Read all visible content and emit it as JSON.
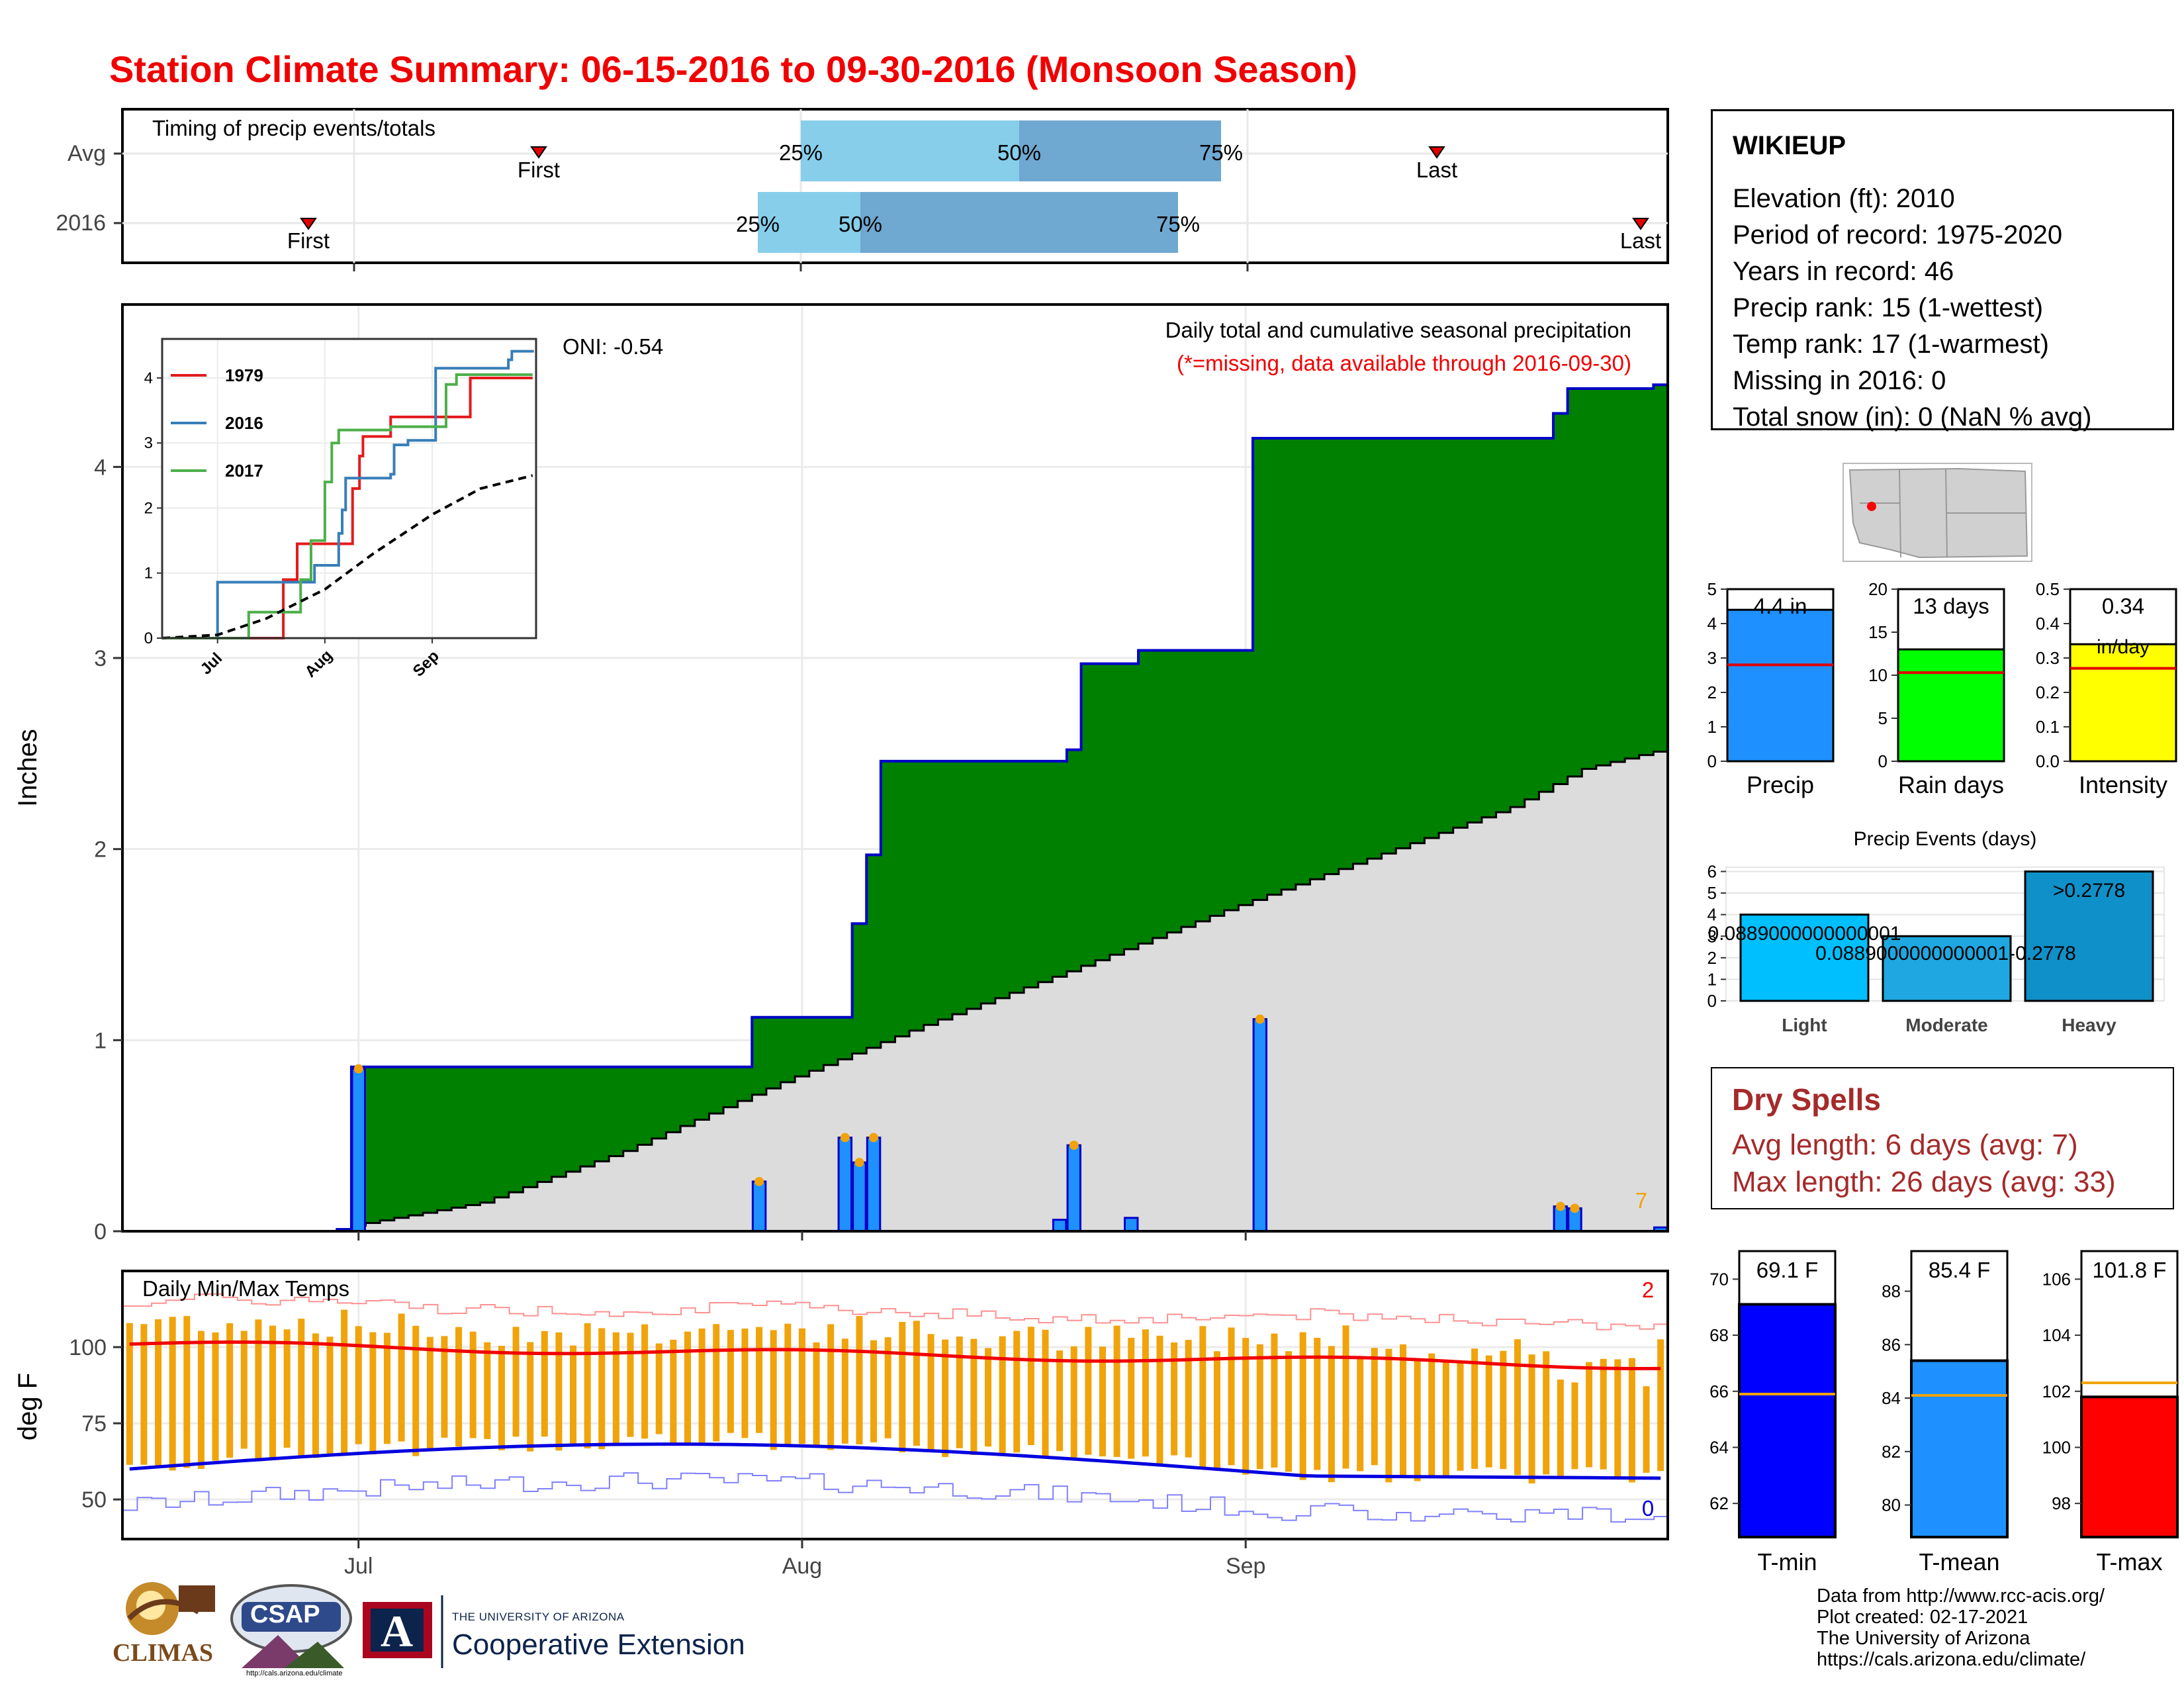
{
  "title": "Station Climate Summary: 06-15-2016 to 09-30-2016 (Monsoon Season)",
  "colors": {
    "title": "#f00000",
    "cumulative_2016": "#008000",
    "cumulative_outline": "#0000c8",
    "avg_cumulative": "#dcdcdc",
    "daily_bar": "#1e90ff",
    "temp_bar": "#f0a30a",
    "tmax_line": "#f00000",
    "tmin_line": "#0000e0",
    "dry_spell_text": "#a52a2a",
    "quartile_light": "#87ceeb",
    "quartile_dark": "#6fa8d0"
  },
  "timing_panel": {
    "label": "Timing of precip events/totals",
    "rows": [
      {
        "name": "Avg",
        "first_label": "First",
        "last_label": "Last",
        "q25": "25%",
        "q50": "50%",
        "q75": "75%"
      },
      {
        "name": "2016",
        "first_label": "First",
        "last_label": "Last",
        "q25": "25%",
        "q50": "50%",
        "q75": "75%"
      }
    ]
  },
  "precip_panel": {
    "ylabel": "Inches",
    "yticks": [
      "0",
      "1",
      "2",
      "3",
      "4"
    ],
    "annotation_title": "Daily total and cumulative seasonal precipitation",
    "annotation_sub": "(*=missing, data available through 2016-09-30)",
    "oni": "ONI: -0.54",
    "count_label": "7"
  },
  "inset": {
    "yticks": [
      "0",
      "1",
      "2",
      "3",
      "4"
    ],
    "xticks": [
      "Jul",
      "Aug",
      "Sep"
    ],
    "legend": [
      "1979",
      "2016",
      "2017"
    ]
  },
  "temp_panel": {
    "ylabel": "deg F",
    "label": "Daily Min/Max Temps",
    "yticks": [
      "50",
      "75",
      "100"
    ],
    "xticks": [
      "Jul",
      "Aug",
      "Sep"
    ],
    "count_hi": "2",
    "count_lo": "0"
  },
  "station": {
    "name": "WIKIEUP",
    "lines": [
      "Elevation (ft): 2010",
      "Period of record: 1975-2020",
      "Years in record: 46",
      "Precip rank: 15 (1-wettest)",
      "Temp rank: 17 (1-warmest)",
      "Missing in 2016: 0",
      "Total snow (in): 0 (NaN % avg)"
    ]
  },
  "summary_bars": [
    {
      "label": "Precip",
      "value_text": "4.4 in",
      "value": 4.4,
      "avg": 2.8,
      "ymax": 5,
      "ticks": [
        "0",
        "1",
        "2",
        "3",
        "4",
        "5"
      ],
      "color": "#1e90ff"
    },
    {
      "label": "Rain days",
      "value_text": "13 days",
      "value": 13,
      "avg": 10.3,
      "ymax": 20,
      "ticks": [
        "0",
        "5",
        "10",
        "15",
        "20"
      ],
      "color": "#00ff00"
    },
    {
      "label": "Intensity",
      "value_text": "0.34",
      "value_text2": "in/day",
      "value": 0.34,
      "avg": 0.27,
      "ymax": 0.5,
      "ticks": [
        "0.0",
        "0.1",
        "0.2",
        "0.3",
        "0.4",
        "0.5"
      ],
      "color": "#ffff00"
    }
  ],
  "precip_events": {
    "title": "Precip Events (days)",
    "ticks": [
      "0",
      "1",
      "2",
      "3",
      "4",
      "5",
      "6"
    ],
    "bars": [
      {
        "label": "Light",
        "value": 4,
        "threshold": "0.0889000000000001",
        "color": "#00bfff"
      },
      {
        "label": "Moderate",
        "value": 3,
        "threshold": "0.0889000000000001-0.2778",
        "color": "#1ea7e0"
      },
      {
        "label": "Heavy",
        "value": 6,
        "threshold": ">0.2778",
        "color": "#1090c8"
      }
    ]
  },
  "dry_spells": {
    "title": "Dry Spells",
    "avg": "Avg length: 6 days (avg: 7)",
    "max": "Max length: 26 days (avg: 33)"
  },
  "temp_summary": [
    {
      "label": "T-min",
      "value_text": "69.1 F",
      "value": 69.1,
      "avg": 65.9,
      "ymin": 60.8,
      "ymax": 71,
      "ticks": [
        62,
        64,
        66,
        68,
        70
      ],
      "color": "#0000ff"
    },
    {
      "label": "T-mean",
      "value_text": "85.4 F",
      "value": 85.4,
      "avg": 84.1,
      "ymin": 78.8,
      "ymax": 89.5,
      "ticks": [
        80,
        82,
        84,
        86,
        88
      ],
      "color": "#1e90ff"
    },
    {
      "label": "T-max",
      "value_text": "101.8 F",
      "value": 101.8,
      "avg": 102.3,
      "ymin": 96.8,
      "ymax": 107,
      "ticks": [
        98,
        100,
        102,
        104,
        106
      ],
      "color": "#ff0000"
    }
  ],
  "credits": [
    "Data from http://www.rcc-acis.org/",
    "Plot created: 02-17-2021",
    "The University of Arizona",
    "https://cals.arizona.edu/climate/"
  ],
  "logos": {
    "climas": "CLIMAS",
    "csap": "CSAP",
    "csap_url": "http://cals.arizona.edu/climate",
    "ua_line1": "THE UNIVERSITY OF ARIZONA",
    "ua_line2": "Cooperative Extension",
    "ua_mark": "A"
  },
  "chart_data": [
    {
      "type": "area",
      "title": "Daily total and cumulative seasonal precipitation",
      "ylabel": "Inches",
      "ylim": [
        0,
        4.85
      ],
      "xlim": [
        "2016-06-15",
        "2016-09-30"
      ],
      "cumulative_2016": [
        [
          "2016-06-15",
          0
        ],
        [
          "2016-06-30",
          0.01
        ],
        [
          "2016-07-01",
          0.86
        ],
        [
          "2016-07-28",
          0.86
        ],
        [
          "2016-07-29",
          1.12
        ],
        [
          "2016-08-04",
          1.12
        ],
        [
          "2016-08-05",
          1.61
        ],
        [
          "2016-08-06",
          1.97
        ],
        [
          "2016-08-07",
          2.46
        ],
        [
          "2016-08-19",
          2.46
        ],
        [
          "2016-08-20",
          2.52
        ],
        [
          "2016-08-21",
          2.97
        ],
        [
          "2016-08-24",
          2.97
        ],
        [
          "2016-08-25",
          3.04
        ],
        [
          "2016-09-01",
          3.04
        ],
        [
          "2016-09-02",
          4.15
        ],
        [
          "2016-09-22",
          4.15
        ],
        [
          "2016-09-23",
          4.28
        ],
        [
          "2016-09-24",
          4.41
        ],
        [
          "2016-09-30",
          4.43
        ]
      ],
      "avg_cumulative": [
        [
          "2016-07-01",
          0.03
        ],
        [
          "2016-07-10",
          0.15
        ],
        [
          "2016-07-20",
          0.42
        ],
        [
          "2016-07-31",
          0.78
        ],
        [
          "2016-08-10",
          1.08
        ],
        [
          "2016-08-20",
          1.36
        ],
        [
          "2016-08-31",
          1.68
        ],
        [
          "2016-09-10",
          1.95
        ],
        [
          "2016-09-20",
          2.22
        ],
        [
          "2016-09-25",
          2.42
        ],
        [
          "2016-09-30",
          2.51
        ]
      ],
      "daily_bars": [
        [
          "2016-06-30",
          0.01
        ],
        [
          "2016-07-01",
          0.85
        ],
        [
          "2016-07-29",
          0.26
        ],
        [
          "2016-08-04",
          0.49
        ],
        [
          "2016-08-05",
          0.36
        ],
        [
          "2016-08-06",
          0.49
        ],
        [
          "2016-08-19",
          0.06
        ],
        [
          "2016-08-20",
          0.45
        ],
        [
          "2016-08-24",
          0.07
        ],
        [
          "2016-09-02",
          1.11
        ],
        [
          "2016-09-23",
          0.13
        ],
        [
          "2016-09-24",
          0.12
        ],
        [
          "2016-09-30",
          0.02
        ]
      ]
    },
    {
      "type": "line",
      "title": "",
      "xticks": [
        "Jul",
        "Aug",
        "Sep"
      ],
      "ylim": [
        0,
        4.5
      ],
      "series": [
        {
          "name": "1979",
          "values": [
            [
              "06-15",
              0
            ],
            [
              "07-19",
              0
            ],
            [
              "07-20",
              0.9
            ],
            [
              "07-23",
              0.9
            ],
            [
              "07-24",
              1.45
            ],
            [
              "08-08",
              1.45
            ],
            [
              "08-09",
              2.3
            ],
            [
              "08-11",
              2.8
            ],
            [
              "08-12",
              3.1
            ],
            [
              "08-20",
              3.4
            ],
            [
              "09-10",
              3.4
            ],
            [
              "09-12",
              4.0
            ],
            [
              "09-30",
              4.0
            ]
          ]
        },
        {
          "name": "2016",
          "values": [
            [
              "06-15",
              0
            ],
            [
              "06-30",
              0
            ],
            [
              "07-01",
              0.86
            ],
            [
              "07-29",
              1.12
            ],
            [
              "08-05",
              1.61
            ],
            [
              "08-06",
              1.97
            ],
            [
              "08-07",
              2.46
            ],
            [
              "08-20",
              2.52
            ],
            [
              "08-21",
              2.97
            ],
            [
              "08-25",
              3.04
            ],
            [
              "09-02",
              4.15
            ],
            [
              "09-23",
              4.28
            ],
            [
              "09-24",
              4.41
            ],
            [
              "09-30",
              4.43
            ]
          ]
        },
        {
          "name": "2017",
          "values": [
            [
              "06-15",
              0
            ],
            [
              "07-09",
              0
            ],
            [
              "07-10",
              0.4
            ],
            [
              "07-25",
              0.9
            ],
            [
              "07-28",
              1.5
            ],
            [
              "08-01",
              2.4
            ],
            [
              "08-03",
              3.0
            ],
            [
              "08-05",
              3.2
            ],
            [
              "08-20",
              3.25
            ],
            [
              "09-05",
              3.9
            ],
            [
              "09-08",
              4.05
            ],
            [
              "09-30",
              4.05
            ]
          ]
        },
        {
          "name": "Avg",
          "values": [
            [
              "06-15",
              0
            ],
            [
              "07-01",
              0.05
            ],
            [
              "07-15",
              0.3
            ],
            [
              "08-01",
              0.75
            ],
            [
              "08-15",
              1.3
            ],
            [
              "09-01",
              1.9
            ],
            [
              "09-15",
              2.3
            ],
            [
              "09-30",
              2.5
            ]
          ]
        }
      ]
    },
    {
      "type": "bar",
      "title": "Daily Min/Max Temps",
      "ylabel": "deg F",
      "ylim": [
        37,
        125
      ],
      "xlim": [
        "2016-06-15",
        "2016-09-30"
      ],
      "tmax_range": [
        103,
        115
      ],
      "tmin_range": [
        58,
        75
      ],
      "avg_tmax_start": 101,
      "avg_tmax_end": 94,
      "avg_tmin_start": 60,
      "avg_tmin_end": 55
    }
  ]
}
